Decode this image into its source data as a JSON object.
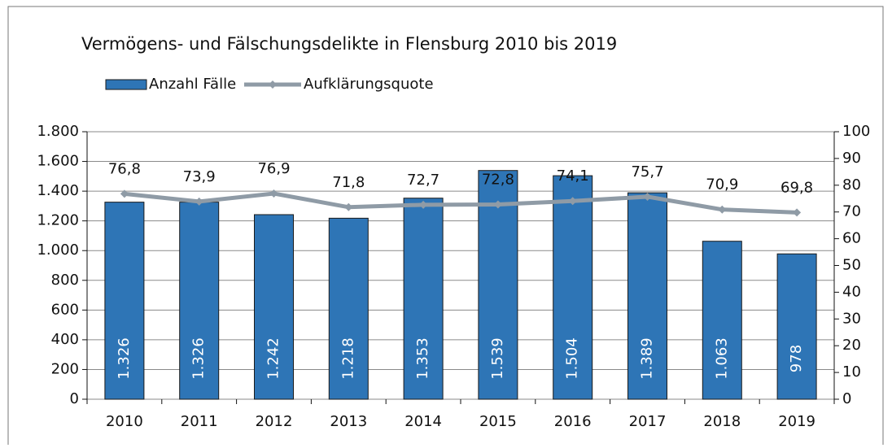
{
  "chart_data": {
    "type": "bar",
    "title": "Vermögens- und Fälschungsdelikte  in Flensburg 2010 bis 2019",
    "categories": [
      "2010",
      "2011",
      "2012",
      "2013",
      "2014",
      "2015",
      "2016",
      "2017",
      "2018",
      "2019"
    ],
    "series": [
      {
        "name": "Anzahl Fälle",
        "type": "bar",
        "color": "#2e75b6",
        "values": [
          1326,
          1326,
          1242,
          1218,
          1353,
          1539,
          1504,
          1389,
          1063,
          978
        ],
        "value_labels": [
          "1.326",
          "1.326",
          "1.242",
          "1.218",
          "1.353",
          "1.539",
          "1.504",
          "1.389",
          "1.063",
          "978"
        ]
      },
      {
        "name": "Aufklärungsquote",
        "type": "line",
        "axis": "y2",
        "color": "#8f9ba6",
        "values": [
          76.8,
          73.9,
          76.9,
          71.8,
          72.7,
          72.8,
          74.1,
          75.7,
          70.9,
          69.8
        ],
        "value_labels": [
          "76,8",
          "73,9",
          "76,9",
          "71,8",
          "72,7",
          "72,8",
          "74,1",
          "75,7",
          "70,9",
          "69,8"
        ]
      }
    ],
    "ylim": [
      0,
      1800
    ],
    "yticks": [
      0,
      200,
      400,
      600,
      800,
      {
        "value": 1000,
        "label": "1.000"
      },
      {
        "value": 1200,
        "label": "1.200"
      },
      {
        "value": 1400,
        "label": "1.400"
      },
      {
        "value": 1600,
        "label": "1.600"
      },
      {
        "value": 1800,
        "label": "1.800"
      }
    ],
    "y2lim": [
      0,
      100
    ],
    "y2ticks": [
      0,
      10,
      20,
      30,
      40,
      50,
      60,
      70,
      80,
      90,
      100
    ],
    "grid": true,
    "legend": "top-left"
  }
}
